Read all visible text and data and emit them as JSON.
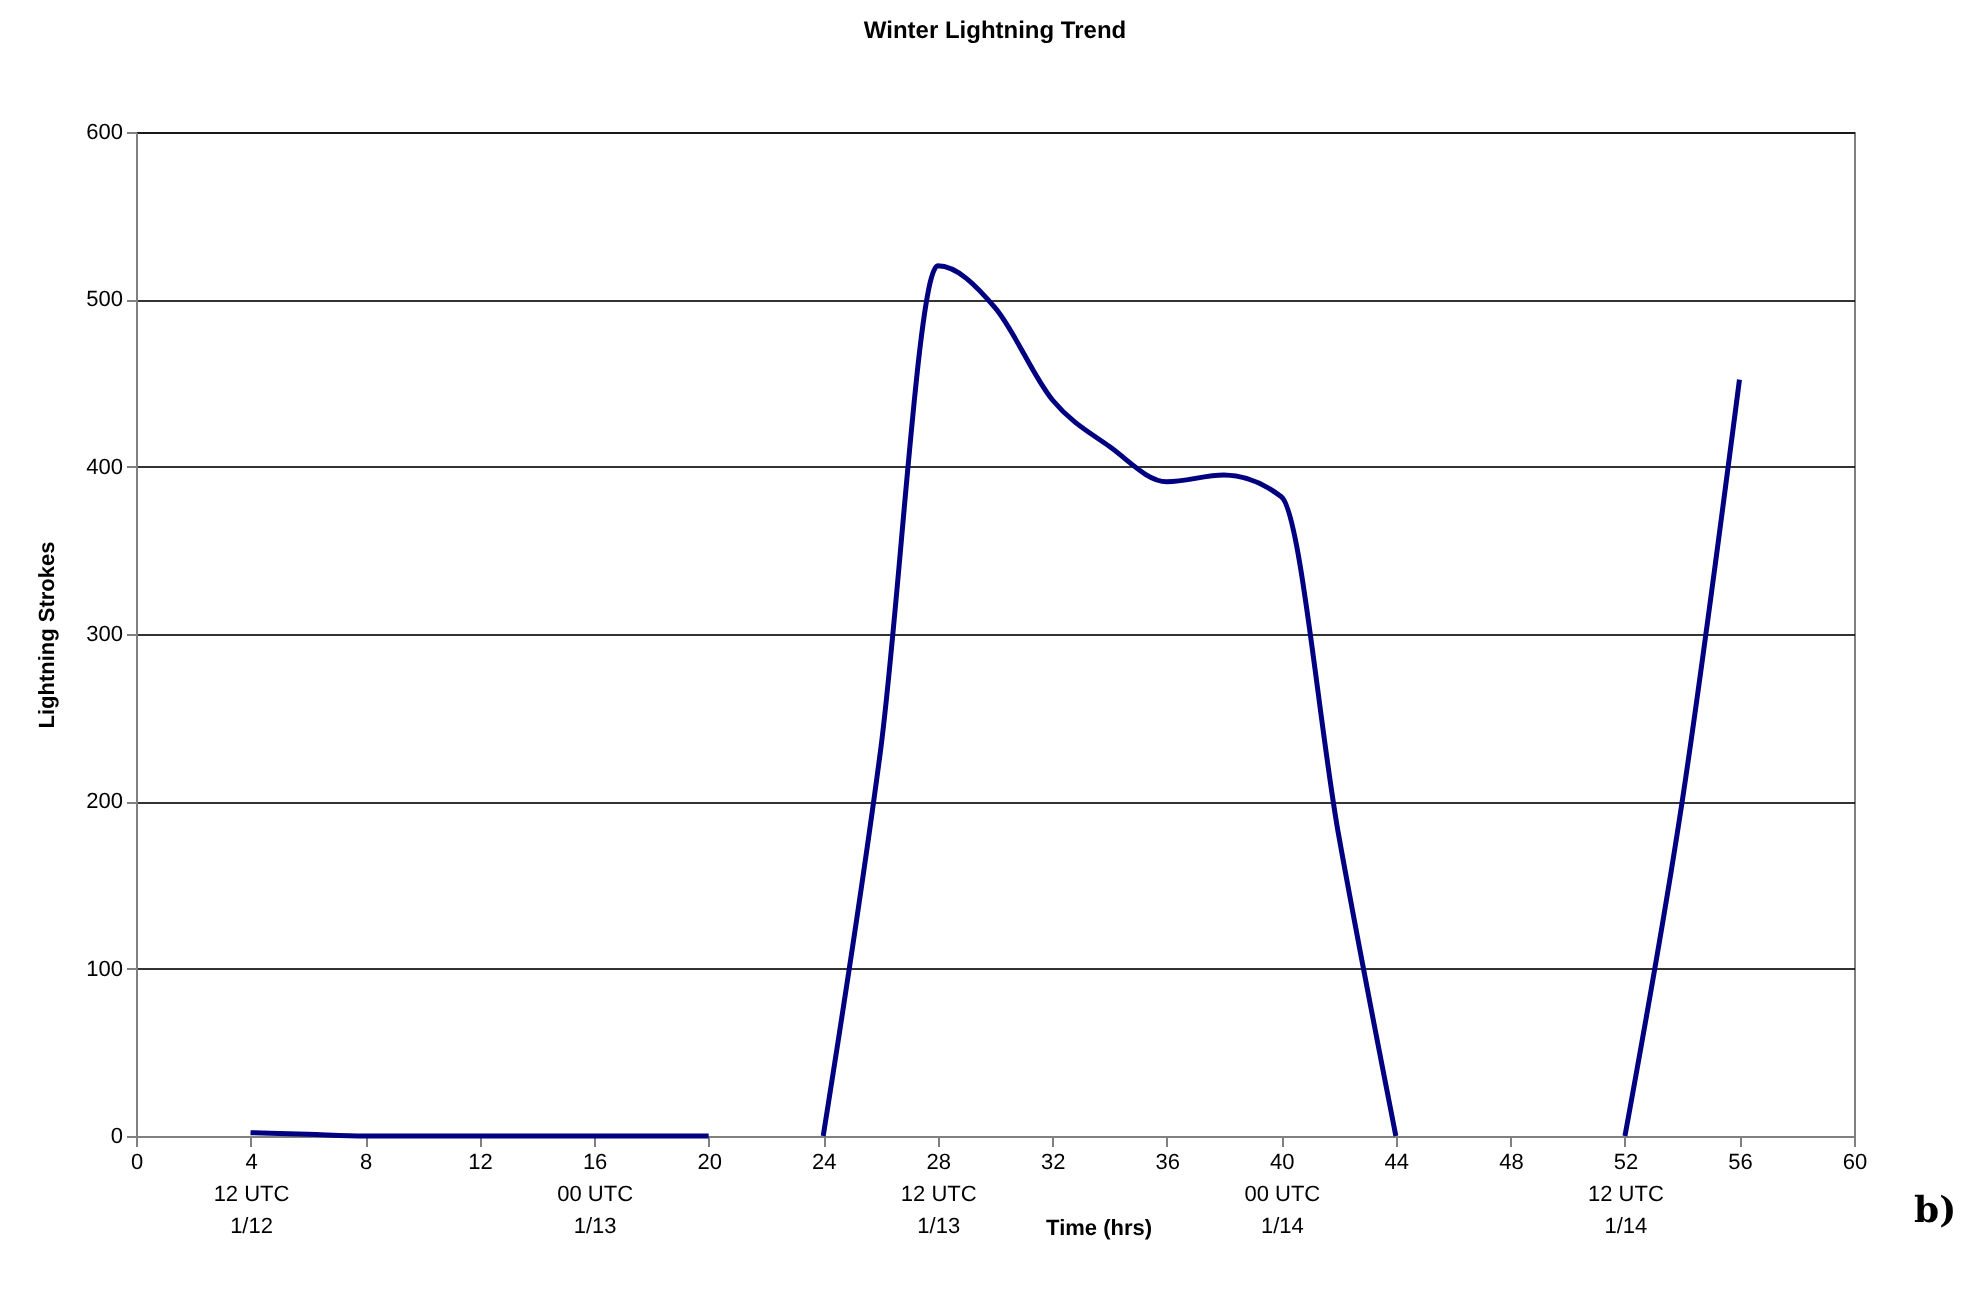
{
  "chart_data": {
    "type": "line",
    "title": "Winter Lightning Trend",
    "xlabel": "Time (hrs)",
    "ylabel": "Lightning Strokes",
    "x": [
      4,
      6,
      8,
      10,
      12,
      14,
      16,
      18,
      20,
      22,
      24,
      26,
      28,
      30,
      32,
      34,
      36,
      38,
      40,
      42,
      44,
      46,
      48,
      50,
      52,
      54,
      56
    ],
    "series": [
      {
        "color": "#000080",
        "values": [
          2,
          1,
          0,
          0,
          0,
          0,
          0,
          0,
          0,
          null,
          0,
          230,
          520,
          495,
          440,
          412,
          391,
          395,
          382,
          180,
          0,
          null,
          null,
          null,
          0,
          200,
          452
        ]
      }
    ],
    "xlim": [
      0,
      60
    ],
    "xticks": [
      0,
      {
        "value": 4,
        "label": "4\n12 UTC\n1/12"
      },
      8,
      12,
      {
        "value": 16,
        "label": "16\n00 UTC\n1/13"
      },
      20,
      24,
      {
        "value": 28,
        "label": "28\n12 UTC\n1/13"
      },
      32,
      36,
      {
        "value": 40,
        "label": "40\n00 UTC\n1/14"
      },
      44,
      48,
      {
        "value": 52,
        "label": "52\n12 UTC\n1/14"
      },
      56,
      60
    ],
    "ylim": [
      0,
      600
    ],
    "yticks": [
      0,
      100,
      200,
      300,
      400,
      500,
      600
    ],
    "grid": "y",
    "marker": "none",
    "line_style": "solid",
    "annotations": [
      "b)"
    ]
  }
}
